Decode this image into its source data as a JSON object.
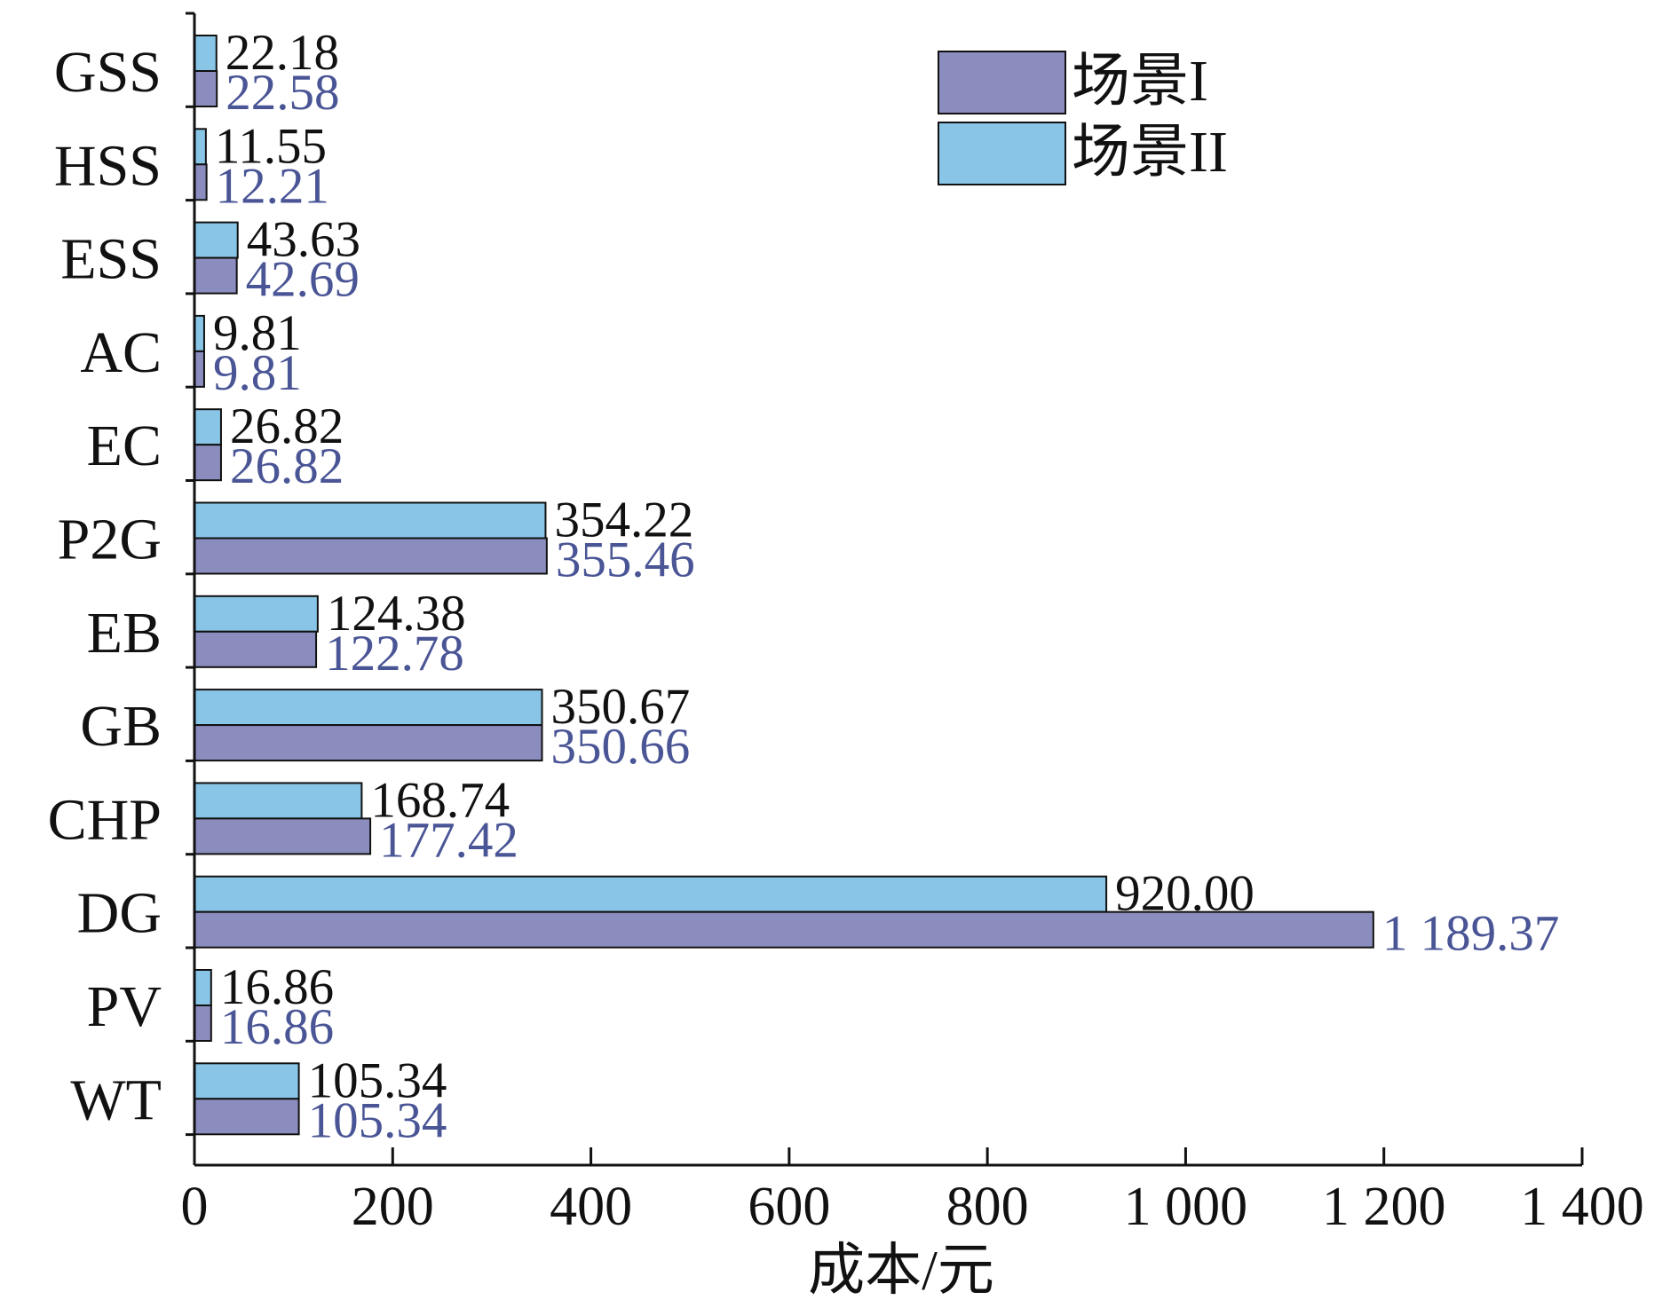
{
  "chart_data": {
    "type": "bar",
    "orientation": "horizontal",
    "categories": [
      "GSS",
      "HSS",
      "ESS",
      "AC",
      "EC",
      "P2G",
      "EB",
      "GB",
      "CHP",
      "DG",
      "PV",
      "WT"
    ],
    "series": [
      {
        "name": "场景I",
        "color": "#8b8dbf",
        "values": [
          22.58,
          12.21,
          42.69,
          9.81,
          26.82,
          355.46,
          122.78,
          350.66,
          177.42,
          1189.37,
          16.86,
          105.34
        ],
        "labels": [
          "22.58",
          "12.21",
          "42.69",
          "9.81",
          "26.82",
          "355.46",
          "122.78",
          "350.66",
          "177.42",
          "1 189.37",
          "16.86",
          "105.34"
        ],
        "label_color": "#4a5596"
      },
      {
        "name": "场景II",
        "color": "#88c5e6",
        "values": [
          22.18,
          11.55,
          43.63,
          9.81,
          26.82,
          354.22,
          124.38,
          350.67,
          168.74,
          920.0,
          16.86,
          105.34
        ],
        "labels": [
          "22.18",
          "11.55",
          "43.63",
          "9.81",
          "26.82",
          "354.22",
          "124.38",
          "350.67",
          "168.74",
          "920.00",
          "16.86",
          "105.34"
        ],
        "label_color": "#111111"
      }
    ],
    "xlabel": "成本/元",
    "ylabel": "",
    "xlim": [
      0,
      1400
    ],
    "xticks": [
      0,
      200,
      400,
      600,
      800,
      1000,
      1200,
      1400
    ],
    "xtick_labels": [
      "0",
      "200",
      "400",
      "600",
      "800",
      "1 000",
      "1 200",
      "1 400"
    ],
    "grid": false,
    "legend_position": "top-right"
  }
}
